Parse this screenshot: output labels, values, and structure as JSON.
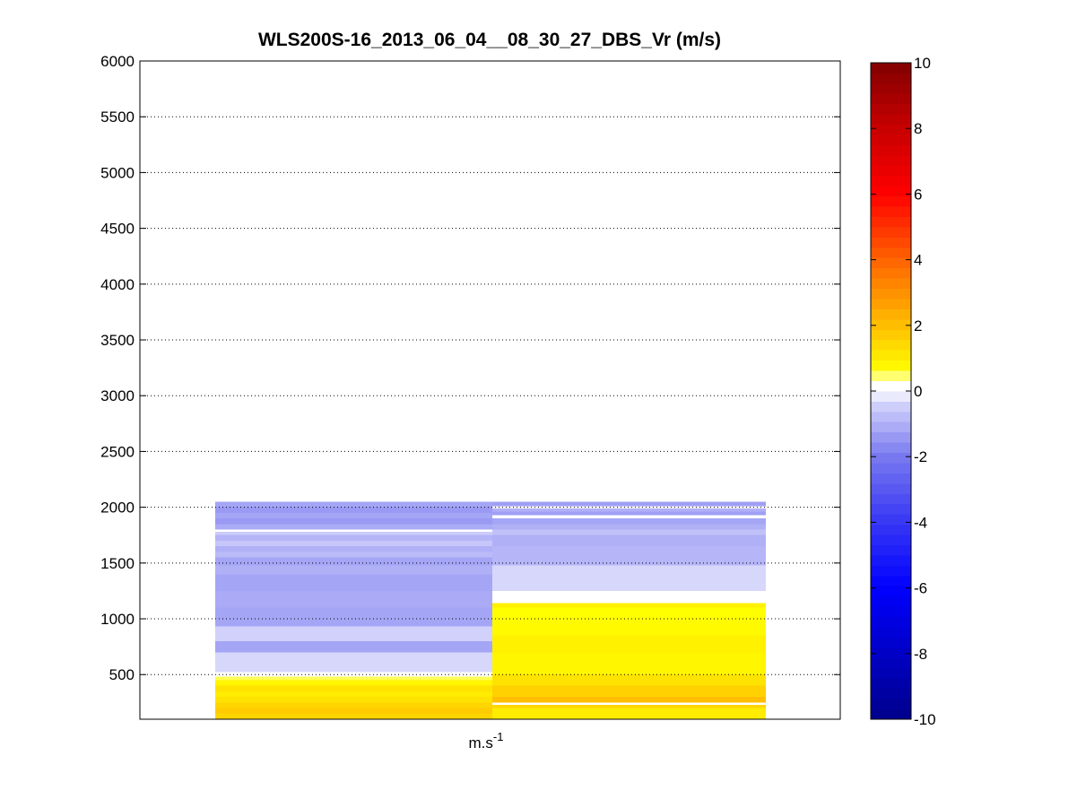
{
  "chart_data": {
    "type": "heatmap",
    "title": "WLS200S-16_2013_06_04__08_30_27_DBS_Vr (m/s)",
    "xlabel_base": "m.s",
    "xlabel_sup": "-1",
    "ylabel": "",
    "ylim": [
      100,
      6000
    ],
    "yticks": [
      500,
      1000,
      1500,
      2000,
      2500,
      3000,
      3500,
      4000,
      4500,
      5000,
      5500,
      6000
    ],
    "grid": true,
    "colorbar": {
      "range": [
        -10,
        10
      ],
      "ticks": [
        -10,
        -8,
        -6,
        -4,
        -2,
        0,
        2,
        4,
        6,
        8,
        10
      ],
      "white_band": [
        0,
        0.3
      ]
    },
    "columns": [
      {
        "cells": [
          {
            "z0": 100,
            "z1": 150,
            "v": 1.5
          },
          {
            "z0": 150,
            "z1": 200,
            "v": 1.7
          },
          {
            "z0": 200,
            "z1": 250,
            "v": 1.5
          },
          {
            "z0": 250,
            "z1": 300,
            "v": 1.2
          },
          {
            "z0": 300,
            "z1": 350,
            "v": 1.0
          },
          {
            "z0": 350,
            "z1": 400,
            "v": 1.2
          },
          {
            "z0": 400,
            "z1": 450,
            "v": 0.8
          },
          {
            "z0": 450,
            "z1": 480,
            "v": 0.5
          },
          {
            "z0": 480,
            "z1": 520,
            "v": 0.1
          },
          {
            "z0": 520,
            "z1": 700,
            "v": -0.3
          },
          {
            "z0": 700,
            "z1": 800,
            "v": -1.2
          },
          {
            "z0": 800,
            "z1": 930,
            "v": -0.4
          },
          {
            "z0": 930,
            "z1": 1100,
            "v": -1.2
          },
          {
            "z0": 1100,
            "z1": 1250,
            "v": -1.1
          },
          {
            "z0": 1250,
            "z1": 1400,
            "v": -1.2
          },
          {
            "z0": 1400,
            "z1": 1480,
            "v": -1.0
          },
          {
            "z0": 1480,
            "z1": 1550,
            "v": -1.2
          },
          {
            "z0": 1550,
            "z1": 1600,
            "v": -0.8
          },
          {
            "z0": 1600,
            "z1": 1650,
            "v": -1.0
          },
          {
            "z0": 1650,
            "z1": 1700,
            "v": -0.6
          },
          {
            "z0": 1700,
            "z1": 1750,
            "v": -0.9
          },
          {
            "z0": 1750,
            "z1": 1780,
            "v": -0.5
          },
          {
            "z0": 1780,
            "z1": 1800,
            "v": 0.1
          },
          {
            "z0": 1800,
            "z1": 1850,
            "v": -1.1
          },
          {
            "z0": 1850,
            "z1": 1900,
            "v": -1.4
          },
          {
            "z0": 1900,
            "z1": 1950,
            "v": -1.2
          },
          {
            "z0": 1950,
            "z1": 2000,
            "v": -1.4
          },
          {
            "z0": 2000,
            "z1": 2050,
            "v": -1.2
          }
        ]
      },
      {
        "cells": [
          {
            "z0": 100,
            "z1": 200,
            "v": 1.0
          },
          {
            "z0": 200,
            "z1": 230,
            "v": 1.5
          },
          {
            "z0": 230,
            "z1": 250,
            "v": 0.1
          },
          {
            "z0": 250,
            "z1": 300,
            "v": 2.0
          },
          {
            "z0": 300,
            "z1": 400,
            "v": 1.6
          },
          {
            "z0": 400,
            "z1": 500,
            "v": 1.2
          },
          {
            "z0": 500,
            "z1": 700,
            "v": 0.8
          },
          {
            "z0": 700,
            "z1": 850,
            "v": 0.9
          },
          {
            "z0": 850,
            "z1": 1000,
            "v": 0.7
          },
          {
            "z0": 1000,
            "z1": 1100,
            "v": 0.6
          },
          {
            "z0": 1100,
            "z1": 1140,
            "v": 0.9
          },
          {
            "z0": 1140,
            "z1": 1250,
            "v": 0.1
          },
          {
            "z0": 1250,
            "z1": 1480,
            "v": -0.3
          },
          {
            "z0": 1480,
            "z1": 1650,
            "v": -0.9
          },
          {
            "z0": 1650,
            "z1": 1750,
            "v": -1.0
          },
          {
            "z0": 1750,
            "z1": 1800,
            "v": -0.7
          },
          {
            "z0": 1800,
            "z1": 1850,
            "v": -1.0
          },
          {
            "z0": 1850,
            "z1": 1900,
            "v": -1.2
          },
          {
            "z0": 1900,
            "z1": 1930,
            "v": 0.1
          },
          {
            "z0": 1930,
            "z1": 1960,
            "v": -1.3
          },
          {
            "z0": 1960,
            "z1": 1990,
            "v": -1.0
          },
          {
            "z0": 1990,
            "z1": 2010,
            "v": 0.1
          },
          {
            "z0": 2010,
            "z1": 2050,
            "v": -1.3
          }
        ]
      }
    ]
  }
}
